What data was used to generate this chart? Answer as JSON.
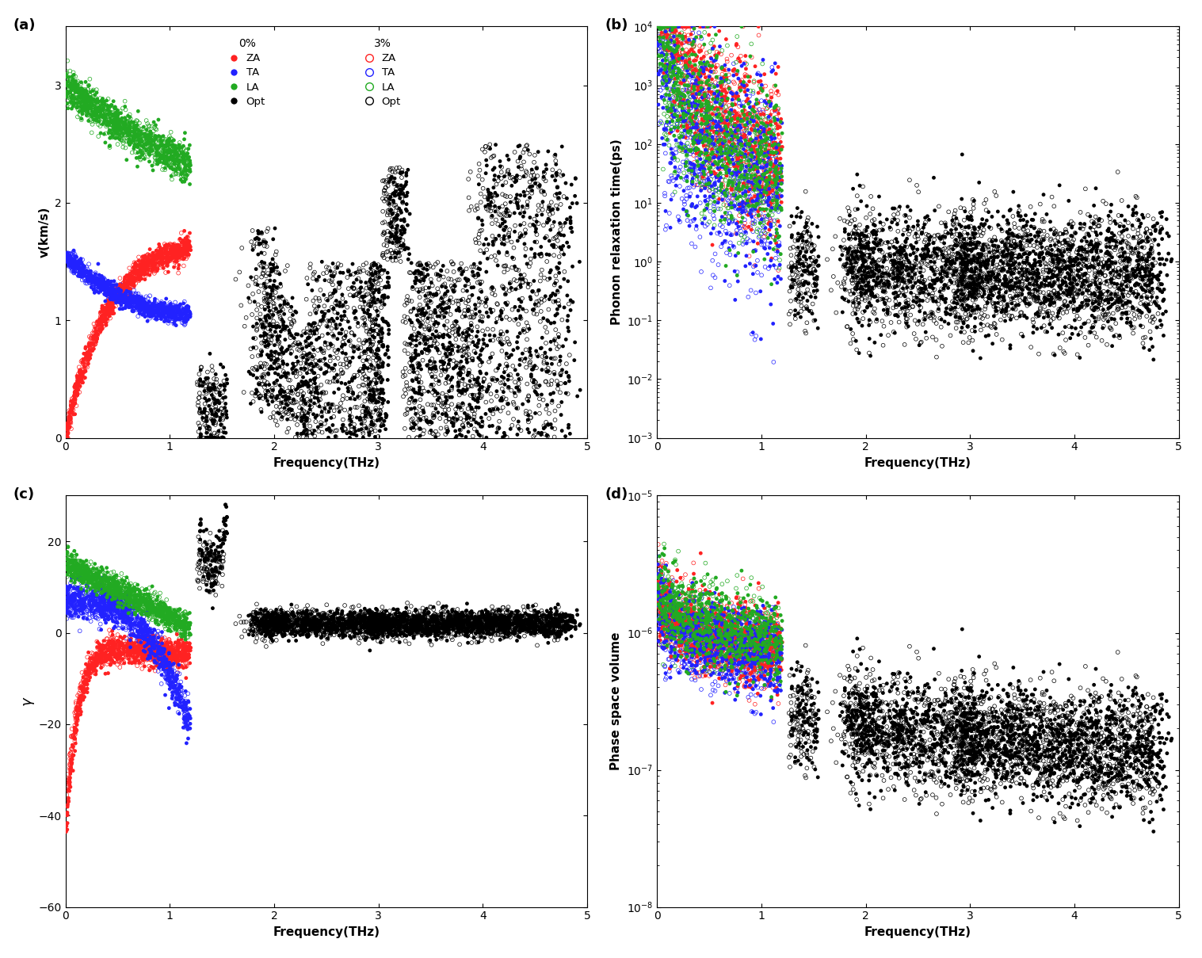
{
  "fig_width": 15.17,
  "fig_height": 12.09,
  "dpi": 100,
  "panel_labels": [
    "(a)",
    "(b)",
    "(c)",
    "(d)"
  ],
  "xlabel": "Frequency(THz)",
  "xlim": [
    0,
    5
  ],
  "xticks": [
    0,
    1,
    2,
    3,
    4,
    5
  ],
  "panel_a": {
    "ylabel": "v(km/s)",
    "ylim": [
      0,
      3.5
    ],
    "yticks": [
      0,
      1,
      2,
      3
    ]
  },
  "panel_b": {
    "ylabel": "Phonon relaxation time(ps)",
    "ylim_log": [
      0.001,
      10000.0
    ]
  },
  "panel_c": {
    "ylabel": "γ",
    "ylim": [
      -60,
      30
    ],
    "yticks": [
      -60,
      -40,
      -20,
      0,
      20
    ]
  },
  "panel_d": {
    "ylabel": "Phase space volume",
    "ylim_log": [
      1e-08,
      1e-05
    ]
  },
  "colors": {
    "ZA": "#FF2222",
    "TA": "#2222FF",
    "LA": "#22AA22",
    "Opt": "#000000"
  },
  "seed": 42
}
